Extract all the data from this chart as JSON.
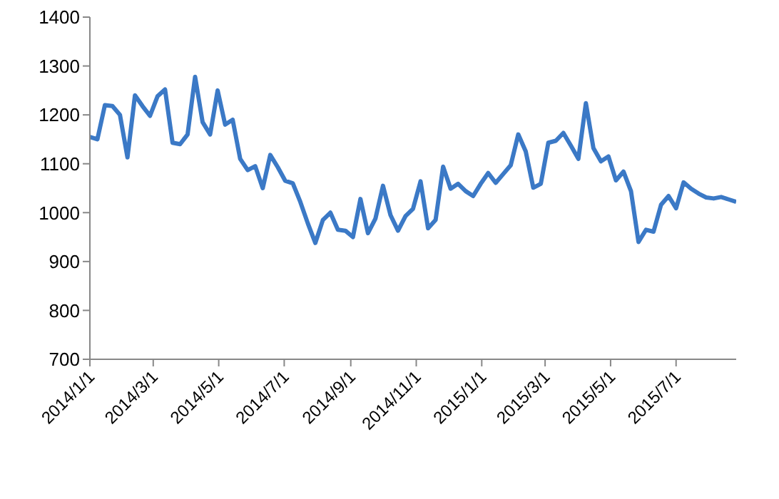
{
  "chart_data": {
    "type": "line",
    "x": [
      "2014-01-01",
      "2014-01-08",
      "2014-01-15",
      "2014-01-22",
      "2014-01-29",
      "2014-02-05",
      "2014-02-12",
      "2014-02-19",
      "2014-02-26",
      "2014-03-05",
      "2014-03-12",
      "2014-03-19",
      "2014-03-26",
      "2014-04-02",
      "2014-04-09",
      "2014-04-16",
      "2014-04-23",
      "2014-04-30",
      "2014-05-07",
      "2014-05-14",
      "2014-05-21",
      "2014-05-28",
      "2014-06-04",
      "2014-06-11",
      "2014-06-18",
      "2014-06-25",
      "2014-07-02",
      "2014-07-09",
      "2014-07-16",
      "2014-07-23",
      "2014-07-30",
      "2014-08-06",
      "2014-08-13",
      "2014-08-20",
      "2014-08-27",
      "2014-09-03",
      "2014-09-10",
      "2014-09-17",
      "2014-09-24",
      "2014-10-01",
      "2014-10-08",
      "2014-10-15",
      "2014-10-22",
      "2014-10-29",
      "2014-11-05",
      "2014-11-12",
      "2014-11-19",
      "2014-11-26",
      "2014-12-03",
      "2014-12-10",
      "2014-12-17",
      "2014-12-24",
      "2014-12-31",
      "2015-01-07",
      "2015-01-14",
      "2015-01-21",
      "2015-01-28",
      "2015-02-04",
      "2015-02-11",
      "2015-02-18",
      "2015-02-25",
      "2015-03-04",
      "2015-03-11",
      "2015-03-18",
      "2015-03-25",
      "2015-04-01",
      "2015-04-08",
      "2015-04-15",
      "2015-04-22",
      "2015-04-29",
      "2015-05-06",
      "2015-05-13",
      "2015-05-20",
      "2015-05-27",
      "2015-06-03",
      "2015-06-10",
      "2015-06-17",
      "2015-06-24",
      "2015-07-01",
      "2015-07-08",
      "2015-07-15",
      "2015-07-22",
      "2015-07-29",
      "2015-08-05",
      "2015-08-12",
      "2015-08-19",
      "2015-08-26"
    ],
    "series": [
      {
        "color": "#3b79c6",
        "values": [
          1155,
          1150,
          1220,
          1218,
          1200,
          1113,
          1240,
          1218,
          1198,
          1238,
          1252,
          1143,
          1140,
          1160,
          1278,
          1185,
          1160,
          1250,
          1180,
          1190,
          1110,
          1087,
          1095,
          1050,
          1118,
          1093,
          1065,
          1060,
          1022,
          978,
          938,
          985,
          1000,
          965,
          963,
          950,
          1028,
          958,
          988,
          1055,
          995,
          963,
          993,
          1008,
          1064,
          968,
          985,
          1094,
          1049,
          1059,
          1044,
          1034,
          1059,
          1081,
          1061,
          1079,
          1097,
          1160,
          1125,
          1051,
          1059,
          1143,
          1147,
          1163,
          1137,
          1110,
          1224,
          1132,
          1105,
          1115,
          1066,
          1084,
          1044,
          940,
          965,
          961,
          1016,
          1034,
          1009,
          1062,
          1049,
          1039,
          1031,
          1029,
          1032,
          1027,
          1022
        ]
      }
    ],
    "xlim": [
      "2014-01-01",
      "2015-08-26"
    ],
    "xticks": [
      {
        "value": "2014-01-01",
        "label": "2014/1/1"
      },
      {
        "value": "2014-03-01",
        "label": "2014/3/1"
      },
      {
        "value": "2014-05-01",
        "label": "2014/5/1"
      },
      {
        "value": "2014-07-01",
        "label": "2014/7/1"
      },
      {
        "value": "2014-09-01",
        "label": "2014/9/1"
      },
      {
        "value": "2014-11-01",
        "label": "2014/11/1"
      },
      {
        "value": "2015-01-01",
        "label": "2015/1/1"
      },
      {
        "value": "2015-03-01",
        "label": "2015/3/1"
      },
      {
        "value": "2015-05-01",
        "label": "2015/5/1"
      },
      {
        "value": "2015-07-01",
        "label": "2015/7/1"
      }
    ],
    "ylim": [
      700,
      1400
    ],
    "yticks": [
      700,
      800,
      900,
      1000,
      1100,
      1200,
      1300,
      1400
    ],
    "grid": false,
    "legend": false,
    "marker": "none",
    "line_style": "solid"
  }
}
